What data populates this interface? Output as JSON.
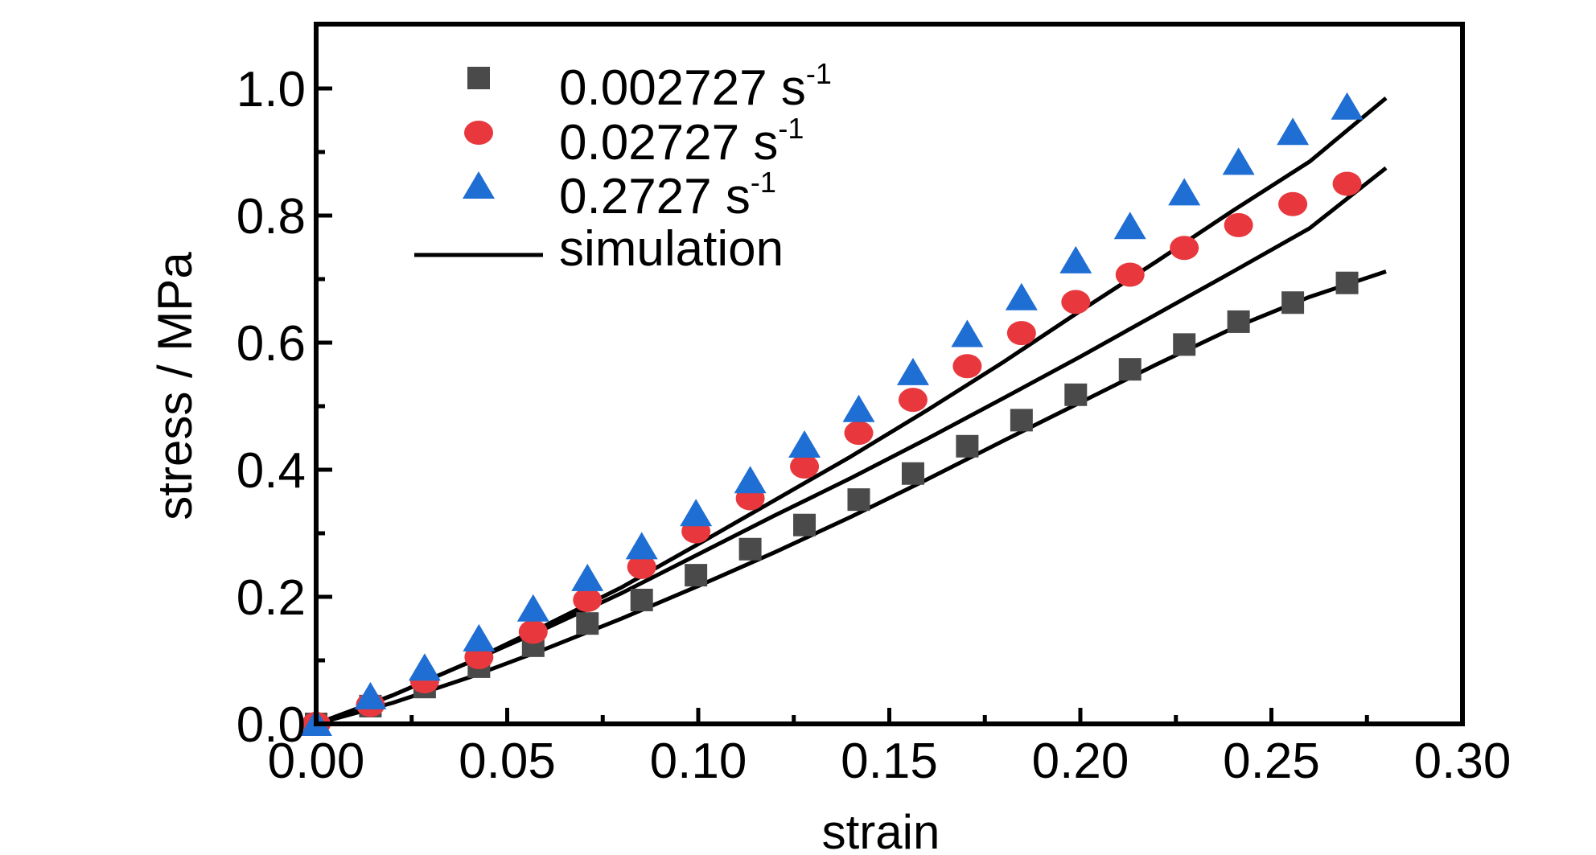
{
  "chart_data": {
    "type": "scatter",
    "xlabel": "strain",
    "ylabel": "stress / MPa",
    "xlim": [
      0,
      0.3
    ],
    "ylim": [
      0,
      1.1
    ],
    "x_ticks": [
      "0.00",
      "0.05",
      "0.10",
      "0.15",
      "0.20",
      "0.25",
      "0.30"
    ],
    "y_ticks": [
      "0.0",
      "0.2",
      "0.4",
      "0.6",
      "0.8",
      "1.0"
    ],
    "legend_position": "top-left",
    "series": [
      {
        "name": "0.002727 s",
        "unit_sup": "-1",
        "marker": "square",
        "color": "#4a4a4a",
        "x": [
          0.0,
          0.0142,
          0.0284,
          0.0426,
          0.0568,
          0.071,
          0.0852,
          0.0994,
          0.1136,
          0.1278,
          0.142,
          0.1562,
          0.1704,
          0.1846,
          0.1988,
          0.213,
          0.2272,
          0.2414,
          0.2556,
          0.2698
        ],
        "y": [
          0.0,
          0.028,
          0.058,
          0.09,
          0.123,
          0.158,
          0.195,
          0.234,
          0.275,
          0.313,
          0.353,
          0.394,
          0.437,
          0.478,
          0.518,
          0.558,
          0.597,
          0.633,
          0.663,
          0.694
        ]
      },
      {
        "name": "0.02727 s",
        "unit_sup": "-1",
        "marker": "circle",
        "color": "#e8383d",
        "x": [
          0.0,
          0.0142,
          0.0284,
          0.0426,
          0.0568,
          0.071,
          0.0852,
          0.0994,
          0.1136,
          0.1278,
          0.142,
          0.1562,
          0.1704,
          0.1846,
          0.1988,
          0.213,
          0.2272,
          0.2414,
          0.2556,
          0.2698
        ],
        "y": [
          0.0,
          0.03,
          0.067,
          0.105,
          0.145,
          0.195,
          0.247,
          0.303,
          0.355,
          0.405,
          0.458,
          0.51,
          0.563,
          0.615,
          0.664,
          0.707,
          0.749,
          0.785,
          0.818,
          0.85
        ]
      },
      {
        "name": "0.2727 s",
        "unit_sup": "-1",
        "marker": "triangle",
        "color": "#1f6ed4",
        "x": [
          0.0,
          0.0142,
          0.0284,
          0.0426,
          0.0568,
          0.071,
          0.0852,
          0.0994,
          0.1136,
          0.1278,
          0.142,
          0.1562,
          0.1704,
          0.1846,
          0.1988,
          0.213,
          0.2272,
          0.2414,
          0.2556,
          0.2698
        ],
        "y": [
          0.0,
          0.042,
          0.087,
          0.133,
          0.18,
          0.228,
          0.278,
          0.33,
          0.382,
          0.438,
          0.494,
          0.552,
          0.612,
          0.67,
          0.728,
          0.782,
          0.835,
          0.883,
          0.93,
          0.97
        ]
      },
      {
        "name": "simulation",
        "marker": "line",
        "color": "#000000",
        "curves": [
          {
            "x": [
              0.0,
              0.02,
              0.04,
              0.06,
              0.08,
              0.1,
              0.12,
              0.14,
              0.16,
              0.18,
              0.2,
              0.22,
              0.24,
              0.26,
              0.28
            ],
            "y": [
              0.0,
              0.033,
              0.073,
              0.118,
              0.166,
              0.217,
              0.27,
              0.326,
              0.385,
              0.446,
              0.506,
              0.566,
              0.623,
              0.672,
              0.712
            ]
          },
          {
            "x": [
              0.0,
              0.02,
              0.04,
              0.06,
              0.08,
              0.1,
              0.12,
              0.14,
              0.16,
              0.18,
              0.2,
              0.22,
              0.24,
              0.26,
              0.28
            ],
            "y": [
              0.0,
              0.045,
              0.097,
              0.15,
              0.206,
              0.267,
              0.328,
              0.387,
              0.449,
              0.513,
              0.578,
              0.645,
              0.712,
              0.78,
              0.875
            ]
          },
          {
            "x": [
              0.0,
              0.02,
              0.04,
              0.06,
              0.08,
              0.1,
              0.12,
              0.14,
              0.16,
              0.18,
              0.2,
              0.22,
              0.24,
              0.26,
              0.28
            ],
            "y": [
              0.0,
              0.045,
              0.097,
              0.155,
              0.215,
              0.283,
              0.352,
              0.421,
              0.494,
              0.57,
              0.65,
              0.728,
              0.808,
              0.885,
              0.985
            ]
          }
        ]
      }
    ]
  }
}
